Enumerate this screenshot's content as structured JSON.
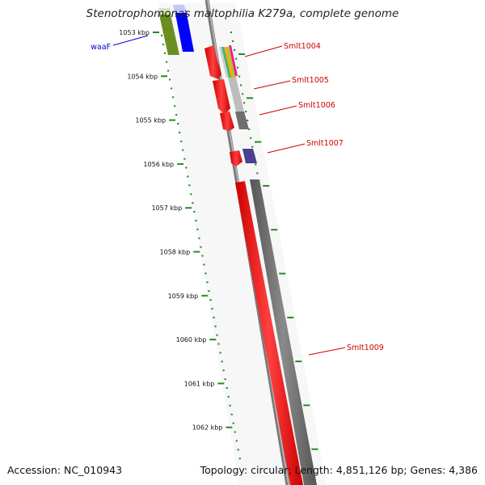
{
  "title": "Stenotrophomonas maltophilia K279a, complete genome",
  "footer": {
    "accession": "Accession: NC_010943",
    "summary": "Topology: circular; Length: 4,851,126 bp; Genes: 4,386"
  },
  "kbp_labels": [
    "1053 kbp",
    "1054 kbp",
    "1055 kbp",
    "1056 kbp",
    "1057 kbp",
    "1058 kbp",
    "1059 kbp",
    "1060 kbp",
    "1061 kbp",
    "1062 kbp"
  ],
  "gene_labels": [
    {
      "id": "waaF",
      "text": "waaF",
      "color": "#0000cc"
    },
    {
      "id": "smlt1004",
      "text": "Smlt1004",
      "color": "#cc0000"
    },
    {
      "id": "smlt1005",
      "text": "Smlt1005",
      "color": "#cc0000"
    },
    {
      "id": "smlt1006",
      "text": "Smlt1006",
      "color": "#cc0000"
    },
    {
      "id": "smlt1007",
      "text": "Smlt1007",
      "color": "#cc0000"
    },
    {
      "id": "smlt1009",
      "text": "Smlt1009",
      "color": "#cc0000"
    }
  ],
  "colors": {
    "cds": "#ff0000",
    "gene": "#666666",
    "tick": "#228B22",
    "backbone": "#888888",
    "waaf_gene": "#6b8e23",
    "waaf_cds": "#0000ff",
    "smlt1007_gene": "#4b3f8f"
  }
}
